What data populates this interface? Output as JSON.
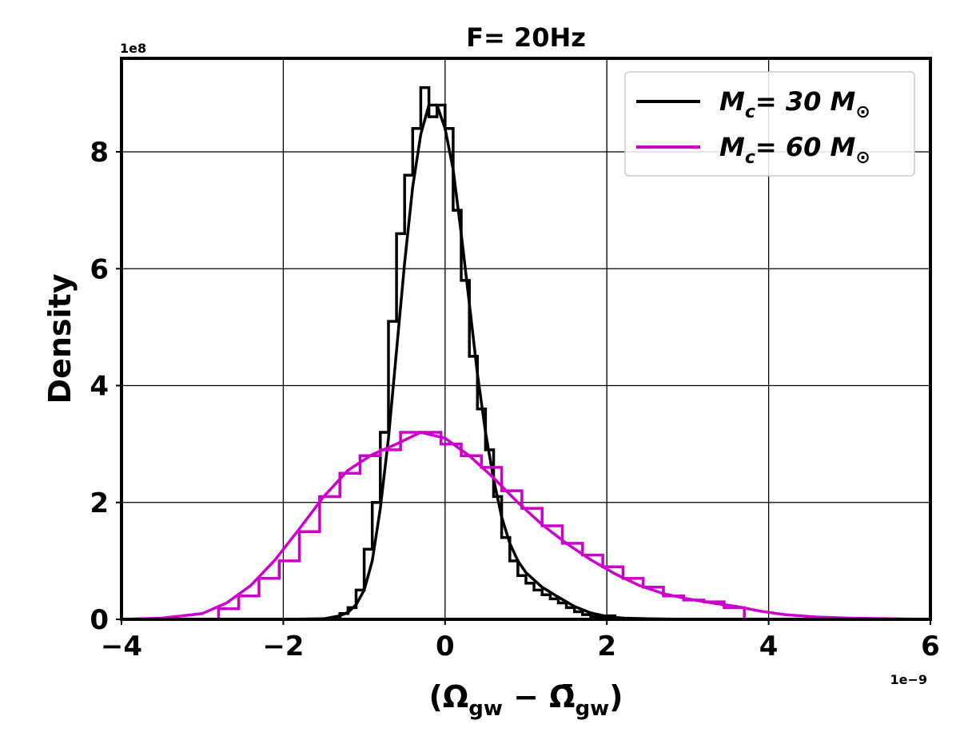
{
  "chart_data": {
    "type": "histogram-with-kde",
    "title": "F= 20Hz",
    "xlabel": "(Ω_gw − Ω̄_gw)",
    "xlabel_parts": [
      "(Ω",
      "gw",
      " − Ω̄",
      "gw",
      ")"
    ],
    "ylabel": "Density",
    "x_scale_label": "1e−9",
    "y_scale_label": "1e8",
    "xlim": [
      -4,
      6
    ],
    "ylim": [
      0,
      9.6
    ],
    "xticks": [
      -4,
      -2,
      0,
      2,
      4,
      6
    ],
    "yticks": [
      0,
      2,
      4,
      6,
      8
    ],
    "xtick_labels": [
      "−4",
      "−2",
      "0",
      "2",
      "4",
      "6"
    ],
    "ytick_labels": [
      "0",
      "2",
      "4",
      "6",
      "8"
    ],
    "grid": true,
    "legend_position": "top-right",
    "series": [
      {
        "name": "M_c= 30 M_⊙",
        "label_parts": [
          "M",
          "c",
          "= 30 M",
          "⊙"
        ],
        "color": "#000000",
        "hist_bin_edges": [
          -1.4,
          -1.3,
          -1.2,
          -1.1,
          -1.0,
          -0.9,
          -0.8,
          -0.7,
          -0.6,
          -0.5,
          -0.4,
          -0.3,
          -0.2,
          -0.1,
          0.0,
          0.1,
          0.2,
          0.3,
          0.4,
          0.5,
          0.6,
          0.7,
          0.8,
          0.9,
          1.0,
          1.1,
          1.2,
          1.3,
          1.4,
          1.5,
          1.6,
          1.7,
          1.8,
          1.9,
          2.0,
          2.1,
          2.2
        ],
        "hist_values": [
          0.03,
          0.1,
          0.2,
          0.5,
          1.2,
          2.0,
          3.2,
          5.1,
          6.6,
          7.6,
          8.4,
          9.1,
          8.6,
          8.8,
          8.4,
          7.0,
          5.8,
          4.5,
          3.6,
          2.9,
          2.1,
          1.4,
          1.0,
          0.75,
          0.62,
          0.5,
          0.42,
          0.35,
          0.28,
          0.2,
          0.13,
          0.08,
          0.05,
          0.03,
          0.06,
          0.02
        ],
        "kde_x": [
          -4.0,
          -2.0,
          -1.5,
          -1.3,
          -1.2,
          -1.1,
          -1.0,
          -0.9,
          -0.8,
          -0.7,
          -0.6,
          -0.5,
          -0.4,
          -0.3,
          -0.2,
          -0.1,
          0.0,
          0.1,
          0.2,
          0.3,
          0.4,
          0.5,
          0.6,
          0.7,
          0.8,
          0.9,
          1.0,
          1.2,
          1.4,
          1.6,
          1.8,
          2.0,
          2.2,
          2.5,
          3.0,
          6.0
        ],
        "kde_y": [
          0.0,
          0.0,
          0.01,
          0.06,
          0.12,
          0.25,
          0.5,
          1.0,
          1.9,
          3.1,
          4.6,
          6.1,
          7.4,
          8.3,
          8.8,
          8.8,
          8.4,
          7.7,
          6.6,
          5.4,
          4.2,
          3.2,
          2.4,
          1.75,
          1.3,
          1.0,
          0.8,
          0.55,
          0.38,
          0.22,
          0.11,
          0.05,
          0.02,
          0.01,
          0.0,
          0.0
        ]
      },
      {
        "name": "M_c= 60 M_⊙",
        "label_parts": [
          "M",
          "c",
          "= 60 M",
          "⊙"
        ],
        "color": "#cc00cc",
        "hist_bin_edges": [
          -2.8,
          -2.55,
          -2.3,
          -2.05,
          -1.8,
          -1.55,
          -1.3,
          -1.05,
          -0.8,
          -0.55,
          -0.3,
          -0.05,
          0.2,
          0.45,
          0.7,
          0.95,
          1.2,
          1.45,
          1.7,
          1.95,
          2.2,
          2.45,
          2.7,
          2.95,
          3.2,
          3.45,
          3.7
        ],
        "hist_values": [
          0.18,
          0.4,
          0.7,
          1.0,
          1.5,
          2.1,
          2.5,
          2.8,
          2.9,
          3.2,
          3.2,
          3.0,
          2.8,
          2.6,
          2.2,
          1.9,
          1.6,
          1.3,
          1.1,
          0.9,
          0.7,
          0.55,
          0.4,
          0.33,
          0.3,
          0.2
        ],
        "kde_x": [
          -4.0,
          -3.5,
          -3.0,
          -2.7,
          -2.4,
          -2.1,
          -1.8,
          -1.5,
          -1.2,
          -0.9,
          -0.6,
          -0.3,
          0.0,
          0.3,
          0.6,
          0.9,
          1.2,
          1.5,
          1.8,
          2.1,
          2.4,
          2.7,
          3.0,
          3.3,
          3.6,
          3.9,
          4.2,
          4.6,
          5.0,
          5.5,
          6.0
        ],
        "kde_y": [
          0.0,
          0.02,
          0.1,
          0.28,
          0.58,
          1.02,
          1.55,
          2.1,
          2.55,
          2.82,
          3.0,
          3.2,
          3.1,
          2.8,
          2.42,
          2.0,
          1.62,
          1.3,
          1.02,
          0.78,
          0.58,
          0.44,
          0.35,
          0.28,
          0.22,
          0.14,
          0.08,
          0.04,
          0.02,
          0.01,
          0.0
        ]
      }
    ]
  }
}
